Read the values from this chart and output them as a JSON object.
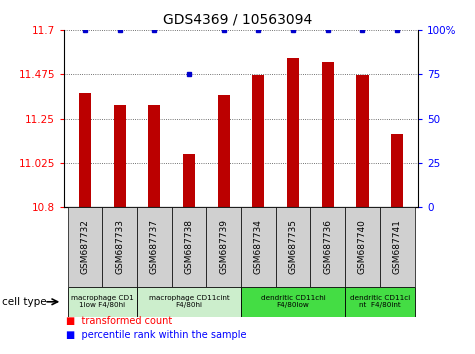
{
  "title": "GDS4369 / 10563094",
  "samples": [
    "GSM687732",
    "GSM687733",
    "GSM687737",
    "GSM687738",
    "GSM687739",
    "GSM687734",
    "GSM687735",
    "GSM687736",
    "GSM687740",
    "GSM687741"
  ],
  "transformed_counts": [
    11.38,
    11.32,
    11.32,
    11.07,
    11.37,
    11.47,
    11.56,
    11.54,
    11.47,
    11.17
  ],
  "percentile_ranks": [
    100,
    100,
    100,
    75,
    100,
    100,
    100,
    100,
    100,
    100
  ],
  "ylim_left": [
    10.8,
    11.7
  ],
  "yticks_left": [
    10.8,
    11.025,
    11.25,
    11.475,
    11.7
  ],
  "ytick_labels_left": [
    "10.8",
    "11.025",
    "11.25",
    "11.475",
    "11.7"
  ],
  "ylim_right": [
    0,
    100
  ],
  "yticks_right": [
    0,
    25,
    50,
    75,
    100
  ],
  "ytick_labels_right": [
    "0",
    "25",
    "50",
    "75",
    "100%"
  ],
  "bar_color": "#bb0000",
  "dot_color": "#0000cc",
  "grid_color": "#444444",
  "sample_box_color": "#d0d0d0",
  "cell_type_groups": [
    {
      "label": "macrophage CD1\n1low F4/80hi",
      "start": 0,
      "end": 2,
      "color": "#cceecc"
    },
    {
      "label": "macrophage CD11cint\nF4/80hi",
      "start": 2,
      "end": 5,
      "color": "#cceecc"
    },
    {
      "label": "dendritic CD11chi\nF4/80low",
      "start": 5,
      "end": 8,
      "color": "#44dd44"
    },
    {
      "label": "dendritic CD11ci\nnt  F4/80int",
      "start": 8,
      "end": 10,
      "color": "#44dd44"
    }
  ],
  "legend_red_label": "transformed count",
  "legend_blue_label": "percentile rank within the sample",
  "cell_type_label": "cell type",
  "background_color": "#ffffff"
}
